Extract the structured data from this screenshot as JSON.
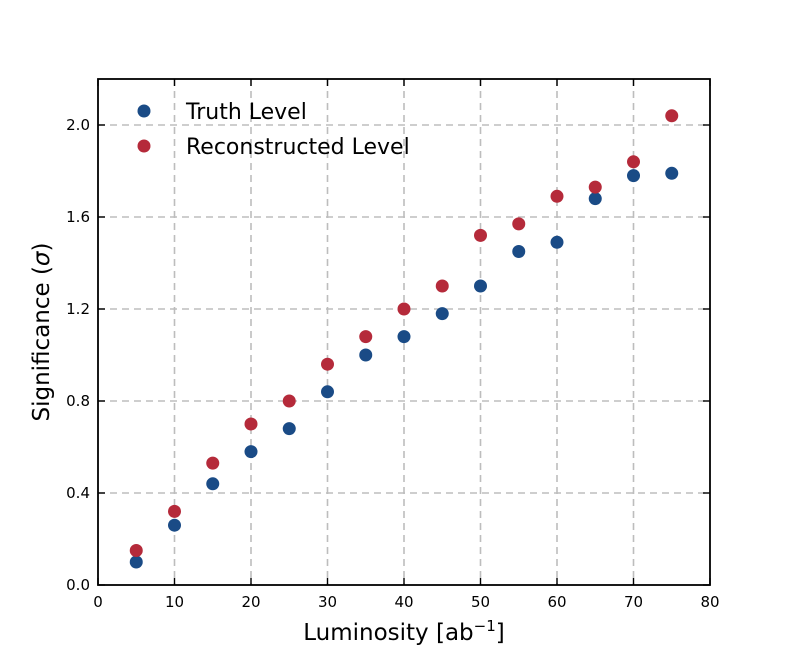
{
  "chart_data": {
    "type": "scatter",
    "title": "",
    "xlabel": "Luminosity [ab",
    "xlabel_sup": "−1",
    "xlabel_end": "]",
    "ylabel": "Significance (",
    "ylabel_sym": "σ",
    "ylabel_end": ")",
    "xlim": [
      0,
      80
    ],
    "ylim": [
      0,
      2.2
    ],
    "xticks": [
      0,
      10,
      20,
      30,
      40,
      50,
      60,
      70,
      80
    ],
    "yticks": [
      0.0,
      0.4,
      0.8,
      1.2,
      1.6,
      2.0
    ],
    "ytick_labels": [
      "0.0",
      "0.4",
      "0.8",
      "1.2",
      "1.6",
      "2.0"
    ],
    "grid": true,
    "legend_position": "top-left",
    "series": [
      {
        "name": "Truth Level",
        "color": "#1a4b86",
        "x": [
          5,
          10,
          15,
          20,
          25,
          30,
          35,
          40,
          45,
          50,
          55,
          60,
          65,
          70,
          75
        ],
        "y": [
          0.1,
          0.26,
          0.44,
          0.58,
          0.68,
          0.84,
          1.0,
          1.08,
          1.18,
          1.3,
          1.45,
          1.49,
          1.68,
          1.78,
          1.79
        ]
      },
      {
        "name": "Reconstructed Level",
        "color": "#b52a3a",
        "x": [
          5,
          10,
          15,
          20,
          25,
          30,
          35,
          40,
          45,
          50,
          55,
          60,
          65,
          70,
          75
        ],
        "y": [
          0.15,
          0.32,
          0.53,
          0.7,
          0.8,
          0.96,
          1.08,
          1.2,
          1.3,
          1.52,
          1.57,
          1.69,
          1.73,
          1.84,
          2.04
        ]
      }
    ]
  }
}
